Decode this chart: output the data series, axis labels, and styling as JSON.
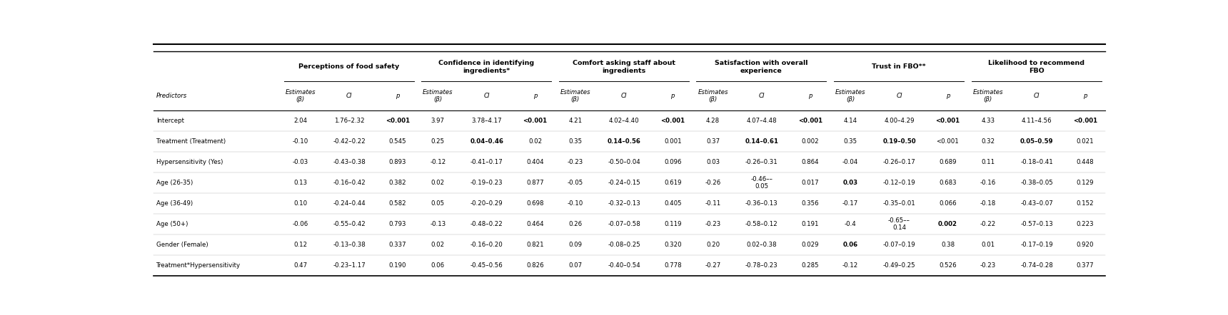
{
  "col_groups": [
    {
      "label": "Perceptions of food safety"
    },
    {
      "label": "Confidence in identifying\ningredients*"
    },
    {
      "label": "Comfort asking staff about\ningredients"
    },
    {
      "label": "Satisfaction with overall\nexperience"
    },
    {
      "label": "Trust in FBO**"
    },
    {
      "label": "Likelihood to recommend\nFBO"
    }
  ],
  "sub_headers": [
    "Estimates\n(β)",
    "CI",
    "p"
  ],
  "row_header": "Predictors",
  "rows": [
    {
      "label": "Intercept",
      "data": [
        "2.04",
        "1.76–2.32",
        "<0.001",
        "3.97",
        "3.78–4.17",
        "<0.001",
        "4.21",
        "4.02–4.40",
        "<0.001",
        "4.28",
        "4.07–4.48",
        "<0.001",
        "4.14",
        "4.00–4.29",
        "<0.001",
        "4.33",
        "4.11–4.56",
        "<0.001"
      ],
      "bold_idx": [
        2,
        5,
        8,
        11,
        14,
        17
      ]
    },
    {
      "label": "Treatment (Treatment)",
      "data": [
        "-0.10",
        "-0.42–0.22",
        "0.545",
        "0.25",
        "0.04–0.46",
        "0.02",
        "0.35",
        "0.14–0.56",
        "0.001",
        "0.37",
        "0.14–0.61",
        "0.002",
        "0.35",
        "0.19–0.50",
        "<0.001",
        "0.32",
        "0.05–0.59",
        "0.021"
      ],
      "bold_idx": [
        4,
        7,
        10,
        13,
        16
      ]
    },
    {
      "label": "Hypersensitivity (Yes)",
      "data": [
        "-0.03",
        "-0.43–0.38",
        "0.893",
        "-0.12",
        "-0.41–0.17",
        "0.404",
        "-0.23",
        "-0.50–0.04",
        "0.096",
        "0.03",
        "-0.26–0.31",
        "0.864",
        "-0.04",
        "-0.26–0.17",
        "0.689",
        "0.11",
        "-0.18–0.41",
        "0.448"
      ],
      "bold_idx": []
    },
    {
      "label": "Age (26-35)",
      "data": [
        "0.13",
        "-0.16–0.42",
        "0.382",
        "0.02",
        "-0.19–0.23",
        "0.877",
        "-0.05",
        "-0.24–0.15",
        "0.619",
        "-0.26",
        "-0.46––\n0.05",
        "0.017",
        "0.03",
        "-0.12–0.19",
        "0.683",
        "-0.16",
        "-0.38–0.05",
        "0.129"
      ],
      "bold_idx": [
        12
      ]
    },
    {
      "label": "Age (36-49)",
      "data": [
        "0.10",
        "-0.24–0.44",
        "0.582",
        "0.05",
        "-0.20–0.29",
        "0.698",
        "-0.10",
        "-0.32–0.13",
        "0.405",
        "-0.11",
        "-0.36–0.13",
        "0.356",
        "-0.17",
        "-0.35–0.01",
        "0.066",
        "-0.18",
        "-0.43–0.07",
        "0.152"
      ],
      "bold_idx": []
    },
    {
      "label": "Age (50+)",
      "data": [
        "-0.06",
        "-0.55–0.42",
        "0.793",
        "-0.13",
        "-0.48–0.22",
        "0.464",
        "0.26",
        "-0.07–0.58",
        "0.119",
        "-0.23",
        "-0.58–0.12",
        "0.191",
        "-0.4",
        "-0.65––\n0.14",
        "0.002",
        "-0.22",
        "-0.57–0.13",
        "0.223"
      ],
      "bold_idx": [
        14
      ]
    },
    {
      "label": "Gender (Female)",
      "data": [
        "0.12",
        "-0.13–0.38",
        "0.337",
        "0.02",
        "-0.16–0.20",
        "0.821",
        "0.09",
        "-0.08–0.25",
        "0.320",
        "0.20",
        "0.02–0.38",
        "0.029",
        "0.06",
        "-0.07–0.19",
        "0.38",
        "0.01",
        "-0.17–0.19",
        "0.920"
      ],
      "bold_idx": [
        12
      ]
    },
    {
      "label": "Treatment*Hypersensitivity",
      "data": [
        "0.47",
        "-0.23–1.17",
        "0.190",
        "0.06",
        "-0.45–0.56",
        "0.826",
        "0.07",
        "-0.40–0.54",
        "0.778",
        "-0.27",
        "-0.78–0.23",
        "0.285",
        "-0.12",
        "-0.49–0.25",
        "0.526",
        "-0.23",
        "-0.74–0.28",
        "0.377"
      ],
      "bold_idx": []
    }
  ]
}
